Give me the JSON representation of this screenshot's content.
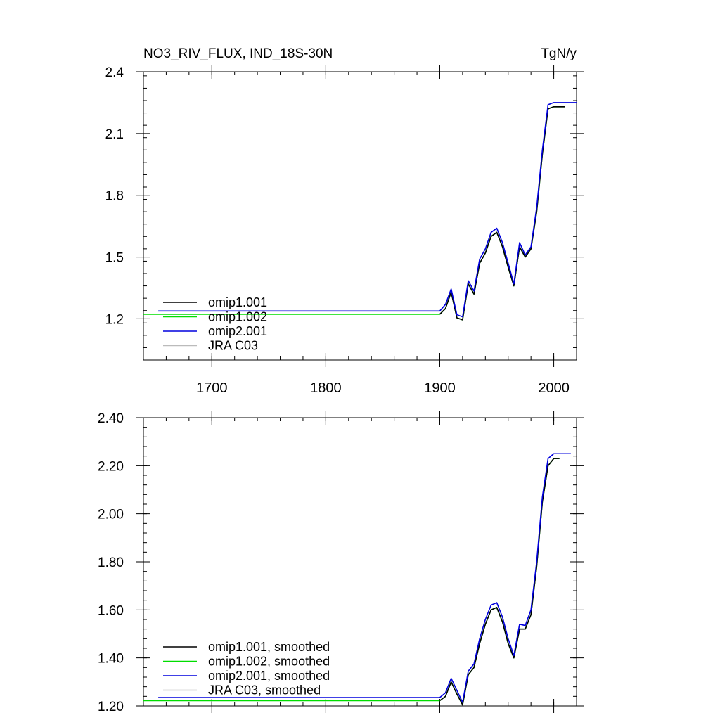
{
  "chart_data": [
    {
      "type": "line",
      "title": "NO3_RIV_FLUX, IND_18S-30N",
      "units": "TgN/y",
      "xlim": [
        1640,
        2020
      ],
      "ylim": [
        1.0,
        2.4
      ],
      "x_ticks": [
        1700,
        1800,
        1900,
        2000
      ],
      "x_tick_labels": [
        "1700",
        "1800",
        "1900",
        "2000"
      ],
      "y_ticks": [
        1.2,
        1.5,
        1.8,
        2.1,
        2.4
      ],
      "y_tick_labels": [
        "1.2",
        "1.5",
        "1.8",
        "2.1",
        "2.4"
      ],
      "grid": false,
      "legend_position": "bottom-left",
      "series": [
        {
          "name": "omip1.001",
          "color": "#000000",
          "x": [
            1900,
            1905,
            1910,
            1915,
            1920,
            1925,
            1930,
            1935,
            1940,
            1945,
            1950,
            1955,
            1960,
            1965,
            1970,
            1975,
            1980,
            1985,
            1990,
            1995,
            2000,
            2005,
            2010
          ],
          "y": [
            1.222,
            1.25,
            1.33,
            1.205,
            1.195,
            1.37,
            1.32,
            1.47,
            1.52,
            1.6,
            1.62,
            1.55,
            1.45,
            1.36,
            1.55,
            1.5,
            1.54,
            1.72,
            2.0,
            2.22,
            2.23,
            2.23,
            2.23
          ]
        },
        {
          "name": "omip1.002",
          "color": "#00dd00",
          "x": [
            1640,
            1900,
            1905,
            1910,
            1915,
            1920,
            1925,
            1930,
            1935,
            1940,
            1945,
            1950,
            1955,
            1960,
            1965,
            1970,
            1975,
            1980,
            1985,
            1990,
            1995,
            2000,
            2005,
            2010
          ],
          "y": [
            1.222,
            1.222,
            1.25,
            1.33,
            1.205,
            1.195,
            1.37,
            1.32,
            1.47,
            1.52,
            1.6,
            1.62,
            1.55,
            1.45,
            1.36,
            1.55,
            1.5,
            1.54,
            1.72,
            2.0,
            2.22,
            2.23,
            2.23,
            2.23
          ]
        },
        {
          "name": "omip2.001",
          "color": "#0000dd",
          "x": [
            1653,
            1900,
            1905,
            1910,
            1915,
            1920,
            1925,
            1930,
            1935,
            1940,
            1945,
            1950,
            1955,
            1960,
            1965,
            1970,
            1975,
            1980,
            1985,
            1990,
            1995,
            2000,
            2005,
            2010,
            2020
          ],
          "y": [
            1.238,
            1.238,
            1.27,
            1.345,
            1.22,
            1.21,
            1.385,
            1.335,
            1.49,
            1.54,
            1.62,
            1.64,
            1.57,
            1.47,
            1.37,
            1.57,
            1.51,
            1.55,
            1.74,
            2.02,
            2.24,
            2.25,
            2.25,
            2.25,
            2.25
          ]
        },
        {
          "name": "JRA C03",
          "color": "#bbbbbb",
          "x": [],
          "y": []
        }
      ]
    },
    {
      "type": "line",
      "title": "",
      "xlim": [
        1640,
        2020
      ],
      "ylim": [
        1.2,
        2.4
      ],
      "x_ticks": [
        1700,
        1800,
        1900,
        2000
      ],
      "x_tick_labels": [
        "",
        "",
        "",
        ""
      ],
      "y_ticks": [
        1.2,
        1.4,
        1.6,
        1.8,
        2.0,
        2.2,
        2.4
      ],
      "y_tick_labels": [
        "1.20",
        "1.40",
        "1.60",
        "1.80",
        "2.00",
        "2.20",
        "2.40"
      ],
      "grid": false,
      "legend_position": "bottom-left",
      "series": [
        {
          "name": "omip1.001, smoothed",
          "color": "#000000",
          "x": [
            1900,
            1905,
            1910,
            1915,
            1920,
            1925,
            1930,
            1935,
            1940,
            1945,
            1950,
            1955,
            1960,
            1965,
            1970,
            1975,
            1980,
            1985,
            1990,
            1995,
            2000,
            2005
          ],
          "y": [
            1.222,
            1.24,
            1.3,
            1.25,
            1.205,
            1.33,
            1.36,
            1.46,
            1.54,
            1.6,
            1.61,
            1.55,
            1.46,
            1.4,
            1.52,
            1.52,
            1.58,
            1.78,
            2.05,
            2.2,
            2.23,
            2.23
          ]
        },
        {
          "name": "omip1.002, smoothed",
          "color": "#00dd00",
          "x": [
            1640,
            1900,
            1905,
            1910,
            1915,
            1920,
            1925,
            1930,
            1935,
            1940,
            1945,
            1950,
            1955,
            1960,
            1965,
            1970,
            1975,
            1980,
            1985,
            1990,
            1995,
            2000,
            2005
          ],
          "y": [
            1.222,
            1.222,
            1.24,
            1.3,
            1.25,
            1.205,
            1.33,
            1.36,
            1.46,
            1.54,
            1.6,
            1.61,
            1.55,
            1.46,
            1.4,
            1.52,
            1.52,
            1.58,
            1.78,
            2.05,
            2.2,
            2.23,
            2.23
          ]
        },
        {
          "name": "omip2.001, smoothed",
          "color": "#0000dd",
          "x": [
            1653,
            1900,
            1905,
            1910,
            1915,
            1920,
            1925,
            1930,
            1935,
            1940,
            1945,
            1950,
            1955,
            1960,
            1965,
            1970,
            1975,
            1980,
            1985,
            1990,
            1995,
            2000,
            2005,
            2015
          ],
          "y": [
            1.235,
            1.235,
            1.255,
            1.315,
            1.265,
            1.215,
            1.345,
            1.375,
            1.48,
            1.56,
            1.62,
            1.63,
            1.57,
            1.48,
            1.41,
            1.54,
            1.535,
            1.6,
            1.8,
            2.07,
            2.23,
            2.25,
            2.25,
            2.25
          ]
        },
        {
          "name": "JRA C03, smoothed",
          "color": "#bbbbbb",
          "x": [],
          "y": []
        }
      ]
    }
  ]
}
